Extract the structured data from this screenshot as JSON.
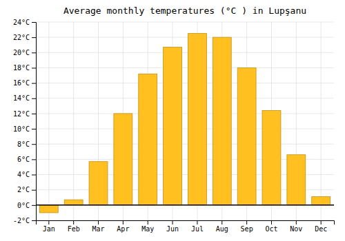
{
  "chart_data": {
    "type": "bar",
    "title": "Average monthly temperatures (°C ) in Lupşanu",
    "categories": [
      "Jan",
      "Feb",
      "Mar",
      "Apr",
      "May",
      "Jun",
      "Jul",
      "Aug",
      "Sep",
      "Oct",
      "Nov",
      "Dec"
    ],
    "values": [
      -1.0,
      0.7,
      5.7,
      12.0,
      17.2,
      20.7,
      22.5,
      22.0,
      18.0,
      12.4,
      6.6,
      1.1
    ],
    "color": "#FFC020",
    "ylim": [
      -2,
      24
    ],
    "yticks": [
      {
        "value": -2,
        "label": "-2°C"
      },
      {
        "value": 0,
        "label": "0°C"
      },
      {
        "value": 2,
        "label": "2°C"
      },
      {
        "value": 4,
        "label": "4°C"
      },
      {
        "value": 6,
        "label": "6°C"
      },
      {
        "value": 8,
        "label": "8°C"
      },
      {
        "value": 10,
        "label": "10°C"
      },
      {
        "value": 12,
        "label": "12°C"
      },
      {
        "value": 14,
        "label": "14°C"
      },
      {
        "value": 16,
        "label": "16°C"
      },
      {
        "value": 18,
        "label": "18°C"
      },
      {
        "value": 20,
        "label": "20°C"
      },
      {
        "value": 22,
        "label": "22°C"
      },
      {
        "value": 24,
        "label": "24°C"
      }
    ],
    "grid": true
  }
}
